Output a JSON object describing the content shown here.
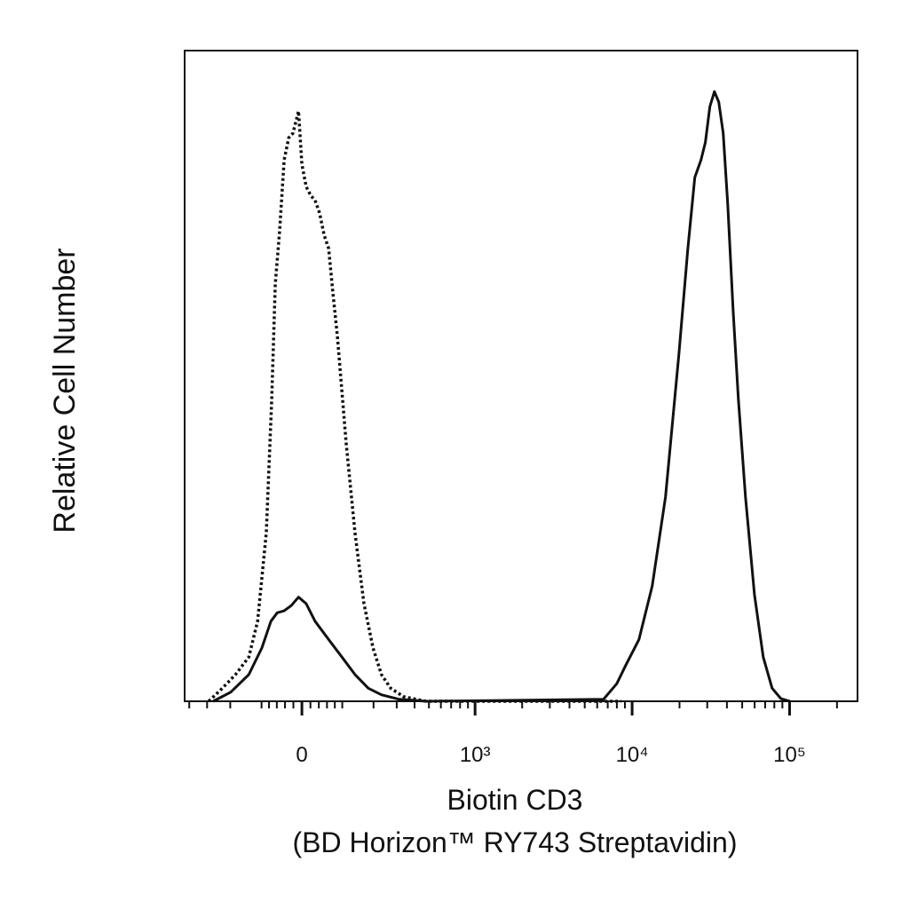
{
  "chart_data": {
    "type": "line",
    "ylabel": "Relative Cell Number",
    "xlabel": [
      "Biotin CD3",
      "(BD Horizon™ RY743 Streptavidin)"
    ],
    "xscale": "arcsinh",
    "xlim": [
      -430,
      270000
    ],
    "ylim": [
      0,
      100
    ],
    "xticks": [
      0,
      {
        "value": 1000,
        "label": "10³"
      },
      {
        "value": 10000,
        "label": "10⁴"
      },
      {
        "value": 100000,
        "label": "10⁵"
      }
    ],
    "xminorticks": [
      -400,
      -300,
      -200,
      -100,
      -80,
      -60,
      -40,
      -20,
      20,
      40,
      60,
      80,
      100,
      200,
      300,
      400,
      500,
      600,
      700,
      800,
      900,
      2000,
      3000,
      4000,
      5000,
      6000,
      7000,
      8000,
      9000,
      20000,
      30000,
      40000,
      50000,
      60000,
      70000,
      80000,
      90000,
      200000
    ],
    "series": [
      {
        "color": "#111111",
        "dash": true,
        "x": [
          -292,
          -231,
          -181,
          -137,
          -111,
          -87,
          -73,
          -64,
          -53,
          -42,
          -31,
          -21,
          -8,
          0,
          10,
          21,
          31,
          42,
          53,
          64,
          75,
          87,
          111,
          137,
          166,
          198,
          231,
          271,
          337,
          480,
          8530
        ],
        "values": [
          0,
          2.0,
          4.1,
          6.8,
          12.3,
          25.9,
          46.4,
          64.1,
          72.3,
          83.2,
          86.6,
          87.3,
          90.7,
          82.5,
          79.1,
          77.7,
          77.0,
          75.0,
          71.6,
          69.6,
          62.8,
          55.9,
          39.6,
          25.9,
          15.0,
          8.2,
          4.1,
          2.0,
          0.7,
          0,
          0
        ]
      },
      {
        "color": "#111111",
        "dash": false,
        "x": [
          -271,
          -198,
          -137,
          -99,
          -75,
          -59,
          -42,
          -25,
          -8,
          10,
          31,
          64,
          99,
          137,
          181,
          231,
          313,
          480,
          6580,
          7990,
          9100,
          11050,
          13420,
          16300,
          19800,
          22600,
          25000,
          27400,
          29200,
          31200,
          33300,
          35500,
          37900,
          40500,
          43800,
          47300,
          52500,
          59800,
          68000,
          77500,
          88200,
          100300
        ],
        "values": [
          0,
          1.4,
          4.1,
          8.2,
          12.3,
          13.6,
          13.9,
          14.7,
          16.0,
          15.0,
          12.3,
          9.5,
          6.8,
          4.1,
          2.0,
          1.0,
          0.3,
          0,
          0.3,
          2.7,
          5.5,
          9.5,
          17.7,
          31.4,
          53.2,
          69.6,
          80.5,
          83.2,
          85.9,
          91.4,
          93.7,
          92.1,
          87.3,
          76.4,
          60.0,
          46.4,
          31.4,
          16.4,
          6.8,
          2.0,
          0.4,
          0
        ]
      }
    ]
  }
}
